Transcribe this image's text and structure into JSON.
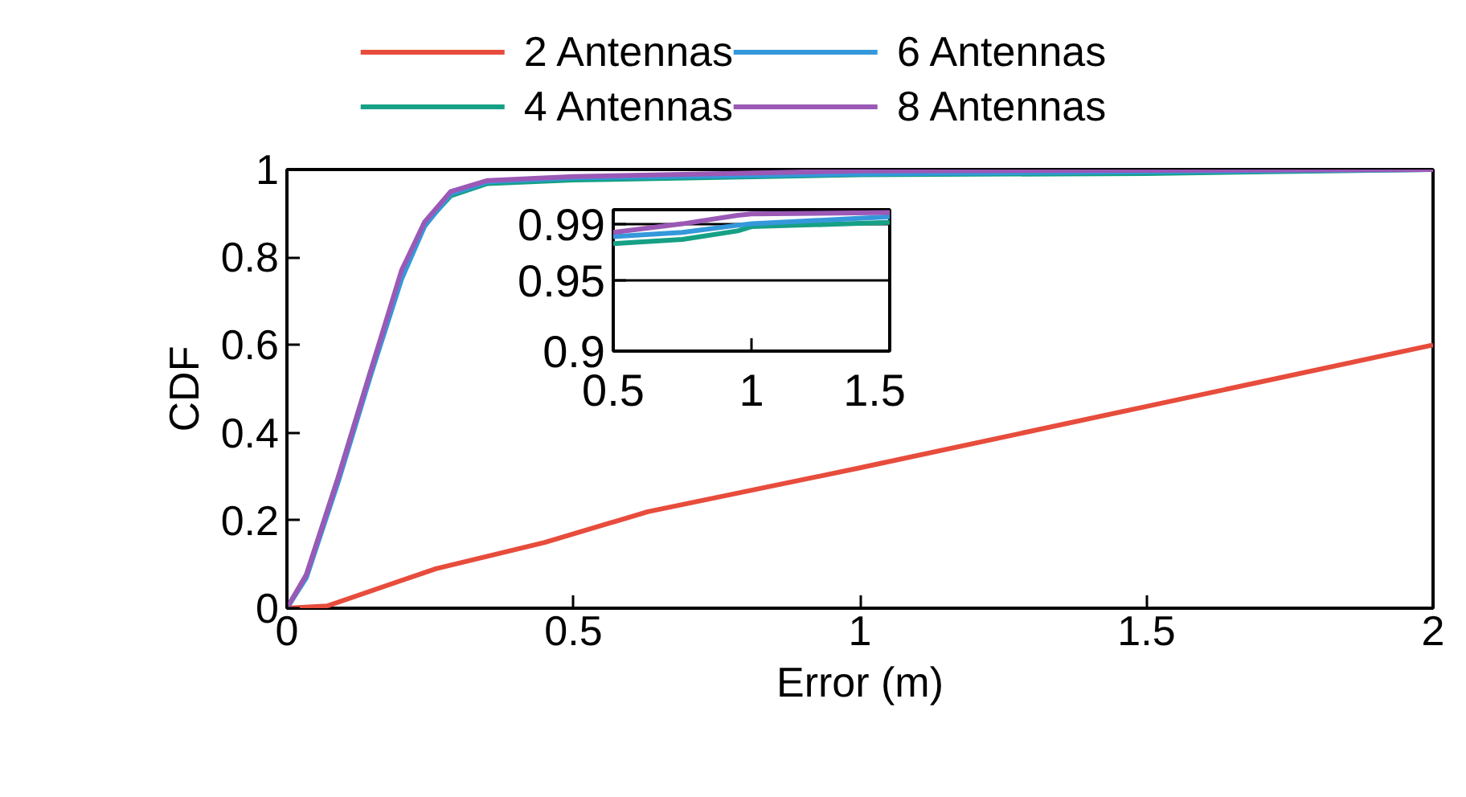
{
  "chart_data": [
    {
      "type": "line",
      "xlabel": "Error (m)",
      "ylabel": "CDF",
      "xlim": [
        0,
        2
      ],
      "ylim": [
        0,
        1
      ],
      "xticks": [
        0,
        0.5,
        1,
        1.5,
        2
      ],
      "yticks": [
        0,
        0.2,
        0.4,
        0.6,
        0.8,
        1
      ],
      "grid": false,
      "legend": "top",
      "series": [
        {
          "name": "2 Antennas",
          "color": "#e74c3c",
          "x": [
            0,
            0.07,
            0.26,
            0.45,
            0.63,
            1,
            1.5,
            2
          ],
          "values": [
            0,
            0.005,
            0.09,
            0.15,
            0.22,
            0.32,
            0.46,
            0.6
          ]
        },
        {
          "name": "4 Antennas",
          "color": "#16a085",
          "x": [
            0,
            0.034,
            0.09,
            0.146,
            0.2,
            0.24,
            0.286,
            0.35,
            0.5,
            1,
            1.5,
            2
          ],
          "values": [
            0,
            0.075,
            0.3,
            0.54,
            0.76,
            0.875,
            0.94,
            0.968,
            0.976,
            0.988,
            0.991,
            1
          ]
        },
        {
          "name": "6 Antennas",
          "color": "#3498db",
          "x": [
            0,
            0.034,
            0.09,
            0.146,
            0.2,
            0.24,
            0.286,
            0.35,
            0.5,
            1,
            1.5,
            2
          ],
          "values": [
            0,
            0.07,
            0.29,
            0.53,
            0.75,
            0.87,
            0.945,
            0.972,
            0.981,
            0.99,
            0.995,
            1
          ]
        },
        {
          "name": "8 Antennas",
          "color": "#9b59b6",
          "x": [
            0,
            0.034,
            0.09,
            0.146,
            0.2,
            0.24,
            0.286,
            0.35,
            0.5,
            1,
            1.5,
            2
          ],
          "values": [
            0,
            0.077,
            0.3,
            0.54,
            0.77,
            0.88,
            0.95,
            0.975,
            0.984,
            0.997,
            0.998,
            1
          ]
        }
      ]
    },
    {
      "type": "line",
      "xlim": [
        0.5,
        1.5
      ],
      "ylim": [
        0.9,
        1
      ],
      "xticks": [
        0.5,
        1,
        1.5
      ],
      "yticks": [
        0.9,
        0.95,
        0.99
      ],
      "grid": "y",
      "series": [
        {
          "color": "#16a085",
          "x": [
            0.5,
            0.75,
            0.95,
            1,
            1.5
          ],
          "values": [
            0.976,
            0.979,
            0.985,
            0.988,
            0.991
          ]
        },
        {
          "color": "#3498db",
          "x": [
            0.5,
            0.75,
            0.95,
            1,
            1.5
          ],
          "values": [
            0.981,
            0.984,
            0.989,
            0.99,
            0.995
          ]
        },
        {
          "color": "#9b59b6",
          "x": [
            0.5,
            0.75,
            0.95,
            1,
            1.5
          ],
          "values": [
            0.984,
            0.99,
            0.996,
            0.997,
            0.998
          ]
        }
      ]
    }
  ]
}
